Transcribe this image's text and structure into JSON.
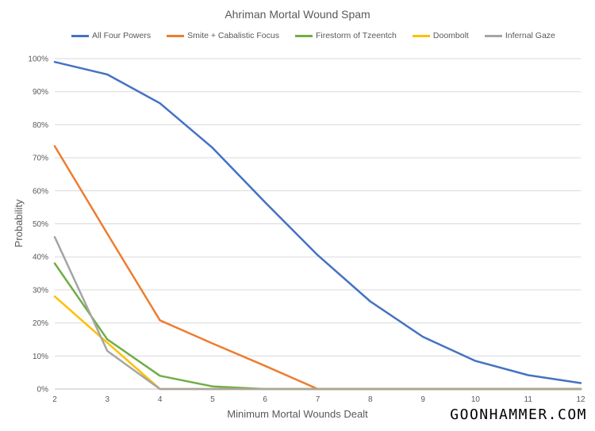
{
  "chart_data": {
    "type": "line",
    "title": "Ahriman Mortal Wound Spam",
    "xlabel": "Minimum Mortal Wounds Dealt",
    "ylabel": "Probability",
    "x": [
      2,
      3,
      4,
      5,
      6,
      7,
      8,
      9,
      10,
      11,
      12
    ],
    "xlim": [
      2,
      12
    ],
    "ylim": [
      0,
      100
    ],
    "y_ticks": [
      "0%",
      "10%",
      "20%",
      "30%",
      "40%",
      "50%",
      "60%",
      "70%",
      "80%",
      "90%",
      "100%"
    ],
    "x_ticks": [
      "2",
      "3",
      "4",
      "5",
      "6",
      "7",
      "8",
      "9",
      "10",
      "11",
      "12"
    ],
    "grid": "horizontal",
    "legend_position": "top",
    "series": [
      {
        "name": "All Four Powers",
        "color": "#4472c4",
        "values": [
          99,
          95.2,
          86.5,
          73,
          56.5,
          40.5,
          26.5,
          15.8,
          8.5,
          4.2,
          1.8
        ]
      },
      {
        "name": "Smite + Cabalistic Focus",
        "color": "#ed7d31",
        "values": [
          73.5,
          47,
          20.8,
          13.8,
          7,
          0,
          0,
          0,
          0,
          0,
          0
        ]
      },
      {
        "name": "Firestorm of Tzeentch",
        "color": "#70ad47",
        "values": [
          38,
          15,
          4,
          0.8,
          0,
          0,
          0,
          0,
          0,
          0,
          0
        ]
      },
      {
        "name": "Doombolt",
        "color": "#ffc000",
        "values": [
          28,
          14,
          0,
          0,
          0,
          0,
          0,
          0,
          0,
          0,
          0
        ]
      },
      {
        "name": "Infernal Gaze",
        "color": "#a5a5a5",
        "values": [
          46,
          11.5,
          0,
          0,
          0,
          0,
          0,
          0,
          0,
          0,
          0
        ]
      }
    ]
  },
  "watermark": "GOONHAMMER.COM"
}
